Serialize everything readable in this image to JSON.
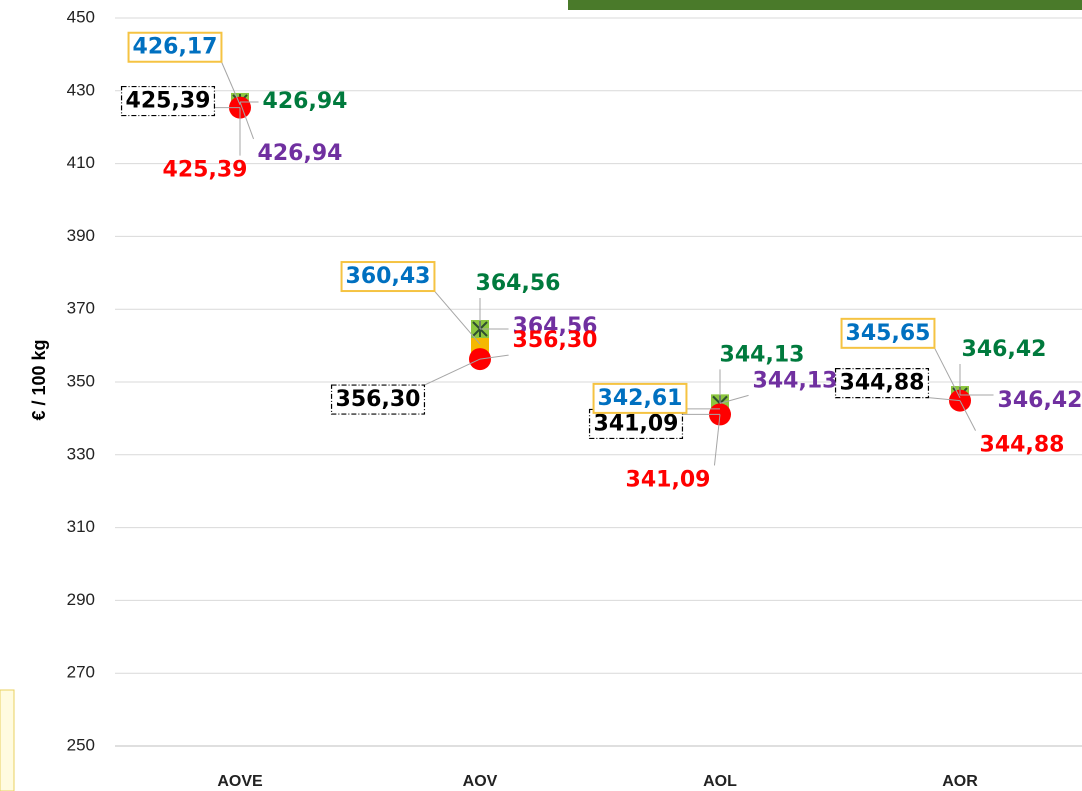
{
  "chart_data": {
    "type": "scatter",
    "y_label": "€ / 100 kg",
    "categories": [
      "AOVE",
      "AOV",
      "AOL",
      "AOR"
    ],
    "ylim": [
      250,
      450
    ],
    "yticks": [
      250,
      270,
      290,
      310,
      330,
      350,
      370,
      390,
      410,
      430,
      450
    ],
    "grid": true,
    "series": [
      {
        "color": "#000000",
        "marker": "dot",
        "marker_color": "#000000",
        "label_box": "dashed",
        "values": [
          425.39,
          356.3,
          341.09,
          344.88
        ],
        "value_labels": [
          "425,39",
          "356,30",
          "341,09",
          "344,88"
        ]
      },
      {
        "color": "#0070c0",
        "marker": "square",
        "marker_color": "#f5b800",
        "label_box": "solid",
        "values": [
          426.17,
          360.43,
          342.61,
          345.65
        ],
        "value_labels": [
          "426,17",
          "360,43",
          "342,61",
          "345,65"
        ]
      },
      {
        "color": "#007a3d",
        "marker": "square",
        "marker_color": "#8dc63f",
        "label_box": "none",
        "values": [
          426.94,
          364.56,
          344.13,
          346.42
        ],
        "value_labels": [
          "426,94",
          "364,56",
          "344,13",
          "346,42"
        ]
      },
      {
        "color": "#7030a0",
        "marker": "asterisk",
        "marker_color": "#2f4f2f",
        "label_box": "none",
        "values": [
          426.94,
          364.56,
          344.13,
          346.42
        ],
        "value_labels": [
          "426,94",
          "364,56",
          "344,13",
          "346,42"
        ]
      },
      {
        "color": "#ff0000",
        "marker": "circle",
        "marker_color": "#ff0000",
        "label_box": "none",
        "values": [
          425.39,
          356.3,
          341.09,
          344.88
        ],
        "value_labels": [
          "425,39",
          "356,30",
          "341,09",
          "344,88"
        ]
      }
    ]
  }
}
